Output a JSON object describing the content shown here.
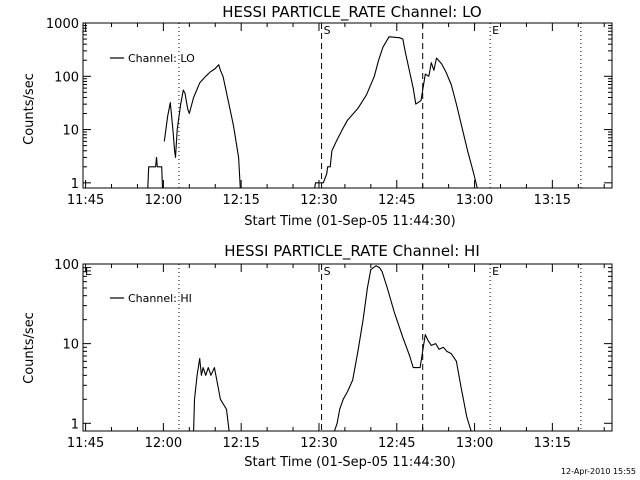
{
  "footer_timestamp": "12-Apr-2010 15:55",
  "chart_data": [
    {
      "type": "line",
      "title": "HESSI PARTICLE_RATE Channel: LO",
      "xlabel": "Start Time (01-Sep-05 11:44:30)",
      "ylabel": "Counts/sec",
      "yscale": "log",
      "xlim": [
        "11:44:30",
        "13:26:30"
      ],
      "ylim": [
        0.8,
        1000
      ],
      "x_ticks": [
        "11:45",
        "12:00",
        "12:15",
        "12:30",
        "12:45",
        "13:00",
        "13:15"
      ],
      "y_ticks": [
        "1",
        "10",
        "100",
        "1000"
      ],
      "legend": {
        "label": "Channel: LO",
        "placement": "top-left"
      },
      "markers": [
        {
          "label": "S",
          "time": "12:30:30",
          "style": "dashed"
        },
        {
          "label": "",
          "time": "12:50:00",
          "style": "dashed"
        },
        {
          "label": "E",
          "time": "13:03:00",
          "style": "dotted"
        },
        {
          "label": "",
          "time": "12:03:00",
          "style": "dotted"
        },
        {
          "label": "",
          "time": "13:20:30",
          "style": "dotted"
        }
      ],
      "series": [
        {
          "name": "Channel: LO",
          "segments": [
            [
              [
                "11:57:00",
                0.8
              ],
              [
                "11:57:10",
                2.0
              ],
              [
                "11:58:30",
                2.0
              ],
              [
                "11:58:40",
                3.0
              ],
              [
                "11:58:50",
                2.0
              ],
              [
                "11:59:40",
                2.0
              ],
              [
                "11:59:50",
                0.8
              ]
            ],
            [
              [
                "12:00:10",
                6.0
              ],
              [
                "12:00:50",
                18.0
              ],
              [
                "12:01:20",
                32.0
              ],
              [
                "12:01:50",
                10.0
              ],
              [
                "12:02:10",
                4.0
              ],
              [
                "12:02:20",
                3.0
              ],
              [
                "12:02:40",
                10.0
              ],
              [
                "12:03:20",
                30.0
              ],
              [
                "12:03:50",
                55.0
              ],
              [
                "12:04:10",
                48.0
              ],
              [
                "12:04:40",
                25.0
              ],
              [
                "12:05:00",
                20.0
              ],
              [
                "12:05:50",
                40.0
              ],
              [
                "12:07:00",
                75.0
              ],
              [
                "12:08:10",
                100.0
              ],
              [
                "12:09:00",
                120.0
              ],
              [
                "12:10:00",
                140.0
              ],
              [
                "12:10:40",
                165.0
              ],
              [
                "12:11:00",
                130.0
              ],
              [
                "12:11:30",
                100.0
              ],
              [
                "12:12:30",
                35.0
              ],
              [
                "12:13:30",
                12.0
              ],
              [
                "12:14:30",
                3.0
              ],
              [
                "12:14:50",
                0.8
              ]
            ],
            [
              [
                "12:29:10",
                0.8
              ],
              [
                "12:29:20",
                1.0
              ],
              [
                "12:30:50",
                1.0
              ],
              [
                "12:31:30",
                1.5
              ],
              [
                "12:31:40",
                2.0
              ],
              [
                "12:32:10",
                2.0
              ],
              [
                "12:32:30",
                4.0
              ],
              [
                "12:33:20",
                6.0
              ],
              [
                "12:34:30",
                10.0
              ],
              [
                "12:35:30",
                15.0
              ],
              [
                "12:37:30",
                25.0
              ],
              [
                "12:39:10",
                45.0
              ],
              [
                "12:40:40",
                100.0
              ],
              [
                "12:41:30",
                200.0
              ],
              [
                "12:42:20",
                350.0
              ],
              [
                "12:43:30",
                550.0
              ],
              [
                "12:45:30",
                530.0
              ],
              [
                "12:46:10",
                500.0
              ],
              [
                "12:46:40",
                280.0
              ],
              [
                "12:48:10",
                60.0
              ],
              [
                "12:48:40",
                30.0
              ],
              [
                "12:49:40",
                35.0
              ],
              [
                "12:50:30",
                110.0
              ],
              [
                "12:51:10",
                100.0
              ],
              [
                "12:51:40",
                180.0
              ],
              [
                "12:52:10",
                130.0
              ],
              [
                "12:52:40",
                220.0
              ],
              [
                "12:53:40",
                170.0
              ],
              [
                "12:54:30",
                120.0
              ],
              [
                "12:55:30",
                70.0
              ],
              [
                "12:56:30",
                30.0
              ],
              [
                "12:57:40",
                10.0
              ],
              [
                "12:58:40",
                4.0
              ],
              [
                "12:59:50",
                1.5
              ],
              [
                "13:00:30",
                0.8
              ]
            ]
          ]
        }
      ]
    },
    {
      "type": "line",
      "title": "HESSI PARTICLE_RATE Channel: HI",
      "xlabel": "Start Time (01-Sep-05 11:44:30)",
      "ylabel": "Counts/sec",
      "yscale": "log",
      "xlim": [
        "11:44:30",
        "13:26:30"
      ],
      "ylim": [
        0.8,
        100
      ],
      "x_ticks": [
        "11:45",
        "12:00",
        "12:15",
        "12:30",
        "12:45",
        "13:00",
        "13:15"
      ],
      "y_ticks": [
        "1",
        "10",
        "100"
      ],
      "legend": {
        "label": "Channel: HI",
        "placement": "top-left"
      },
      "markers": [
        {
          "label": "E",
          "time": "11:44:30",
          "style": "dotted"
        },
        {
          "label": "S",
          "time": "12:30:30",
          "style": "dashed"
        },
        {
          "label": "",
          "time": "12:50:00",
          "style": "dashed"
        },
        {
          "label": "E",
          "time": "13:03:00",
          "style": "dotted"
        },
        {
          "label": "",
          "time": "12:03:00",
          "style": "dotted"
        },
        {
          "label": "",
          "time": "13:20:30",
          "style": "dotted"
        }
      ],
      "series": [
        {
          "name": "Channel: HI",
          "segments": [
            [
              [
                "12:05:50",
                0.8
              ],
              [
                "12:06:00",
                2.0
              ],
              [
                "12:06:30",
                4.0
              ],
              [
                "12:07:00",
                6.5
              ],
              [
                "12:07:20",
                4.0
              ],
              [
                "12:07:40",
                5.0
              ],
              [
                "12:08:10",
                4.0
              ],
              [
                "12:08:40",
                5.0
              ],
              [
                "12:09:10",
                4.0
              ],
              [
                "12:09:50",
                5.0
              ],
              [
                "12:10:30",
                3.0
              ],
              [
                "12:11:00",
                2.0
              ],
              [
                "12:12:10",
                1.5
              ],
              [
                "12:12:40",
                0.8
              ]
            ],
            [
              [
                "12:33:00",
                0.8
              ],
              [
                "12:33:30",
                1.0
              ],
              [
                "12:34:00",
                1.5
              ],
              [
                "12:34:40",
                2.0
              ],
              [
                "12:35:30",
                2.5
              ],
              [
                "12:36:30",
                3.5
              ],
              [
                "12:37:30",
                8.0
              ],
              [
                "12:38:30",
                20.0
              ],
              [
                "12:39:20",
                50.0
              ],
              [
                "12:40:00",
                85.0
              ],
              [
                "12:41:00",
                95.0
              ],
              [
                "12:41:40",
                90.0
              ],
              [
                "12:42:10",
                80.0
              ],
              [
                "12:43:10",
                50.0
              ],
              [
                "12:44:30",
                25.0
              ],
              [
                "12:46:10",
                12.0
              ],
              [
                "12:47:30",
                7.0
              ],
              [
                "12:48:10",
                5.0
              ],
              [
                "12:49:30",
                5.0
              ],
              [
                "12:50:30",
                13.0
              ],
              [
                "12:51:00",
                11.0
              ],
              [
                "12:51:40",
                9.5
              ],
              [
                "12:52:30",
                10.0
              ],
              [
                "12:53:10",
                8.5
              ],
              [
                "12:54:00",
                9.0
              ],
              [
                "12:54:40",
                8.0
              ],
              [
                "12:55:30",
                7.5
              ],
              [
                "12:56:30",
                6.0
              ],
              [
                "12:57:20",
                3.0
              ],
              [
                "12:58:30",
                1.2
              ],
              [
                "12:59:20",
                0.8
              ]
            ]
          ]
        }
      ]
    }
  ]
}
